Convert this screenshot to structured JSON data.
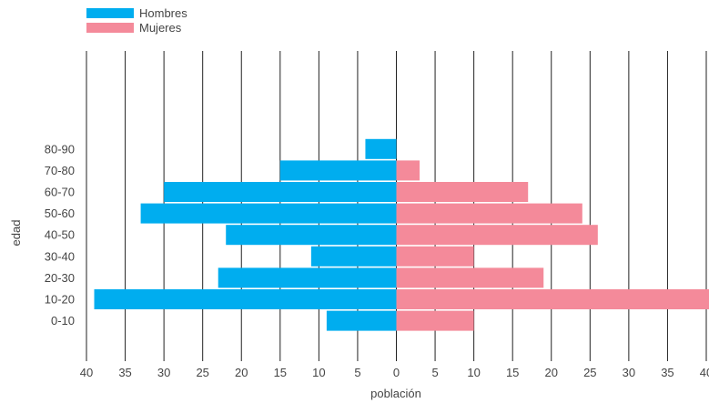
{
  "chart_data": {
    "type": "bar",
    "orientation": "horizontal",
    "layout": "population-pyramid",
    "categories": [
      "0-10",
      "10-20",
      "20-30",
      "30-40",
      "40-50",
      "50-60",
      "60-70",
      "70-80",
      "80-90"
    ],
    "series": [
      {
        "name": "Hombres",
        "color": "#00adef",
        "values": [
          9,
          39,
          23,
          11,
          22,
          33,
          30,
          15,
          4
        ]
      },
      {
        "name": "Mujeres",
        "color": "#f48a9a",
        "values": [
          10,
          41,
          19,
          10,
          26,
          24,
          17,
          3,
          0
        ]
      }
    ],
    "xlabel": "población",
    "ylabel": "edad",
    "xlim": [
      -40,
      40
    ],
    "xticks": [
      "40",
      "35",
      "30",
      "25",
      "20",
      "15",
      "10",
      "5",
      "0",
      "5",
      "10",
      "15",
      "20",
      "25",
      "30",
      "35",
      "40"
    ],
    "grid": "vertical",
    "legend_position": "top-left"
  }
}
